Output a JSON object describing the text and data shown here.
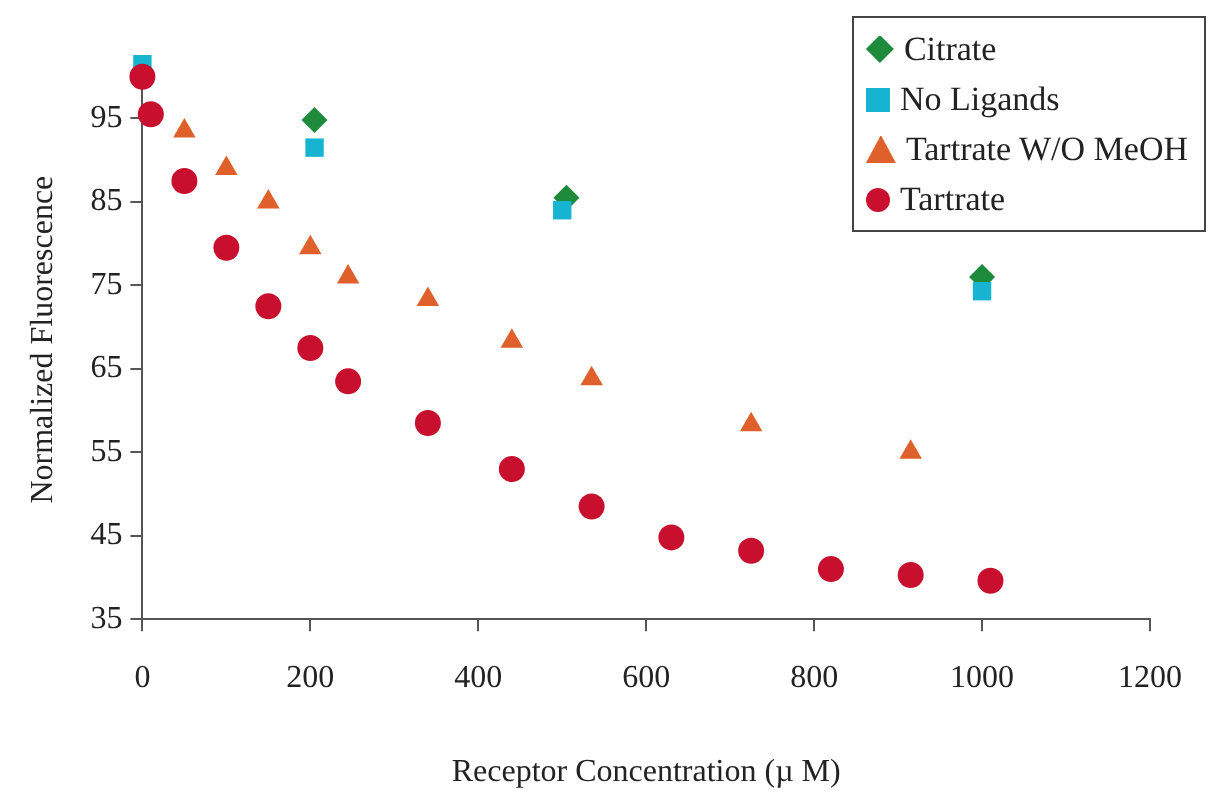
{
  "chart_data": {
    "type": "scatter",
    "xlabel": "Receptor Concentration (µ M)",
    "ylabel": "Normalized Fluorescence",
    "xlim": [
      0,
      1200
    ],
    "xticks": [
      0,
      200,
      400,
      600,
      800,
      1000,
      1200
    ],
    "ylim": [
      35,
      102
    ],
    "yticks": [
      35,
      45,
      55,
      65,
      75,
      85,
      95
    ],
    "grid": false,
    "legend": "top right",
    "series": [
      {
        "name": "Citrate",
        "color": "#1e8a3c",
        "marker": "diamond",
        "x": [
          205,
          505,
          1000
        ],
        "values": [
          94.8,
          85.5,
          76
        ]
      },
      {
        "name": "No Ligands",
        "color": "#17b4d2",
        "marker": "square",
        "x": [
          0,
          205,
          500,
          1000
        ],
        "values": [
          101.5,
          91.5,
          84,
          74.3
        ]
      },
      {
        "name": "Tartrate W/O MeOH",
        "color": "#e0602c",
        "marker": "triangle",
        "x": [
          50,
          100,
          150,
          200,
          245,
          340,
          440,
          535,
          725,
          915
        ],
        "values": [
          93.5,
          89,
          85,
          79.5,
          76,
          73.3,
          68.3,
          63.8,
          58.3,
          55
        ]
      },
      {
        "name": "Tartrate",
        "color": "#c8102e",
        "marker": "circle",
        "x": [
          0,
          10,
          50,
          100,
          150,
          200,
          245,
          340,
          440,
          535,
          630,
          725,
          820,
          915,
          1010
        ],
        "values": [
          100,
          95.5,
          87.5,
          79.5,
          72.5,
          67.5,
          63.5,
          58.5,
          53,
          48.5,
          44.8,
          43.2,
          41,
          40.3,
          39.6
        ]
      }
    ]
  }
}
